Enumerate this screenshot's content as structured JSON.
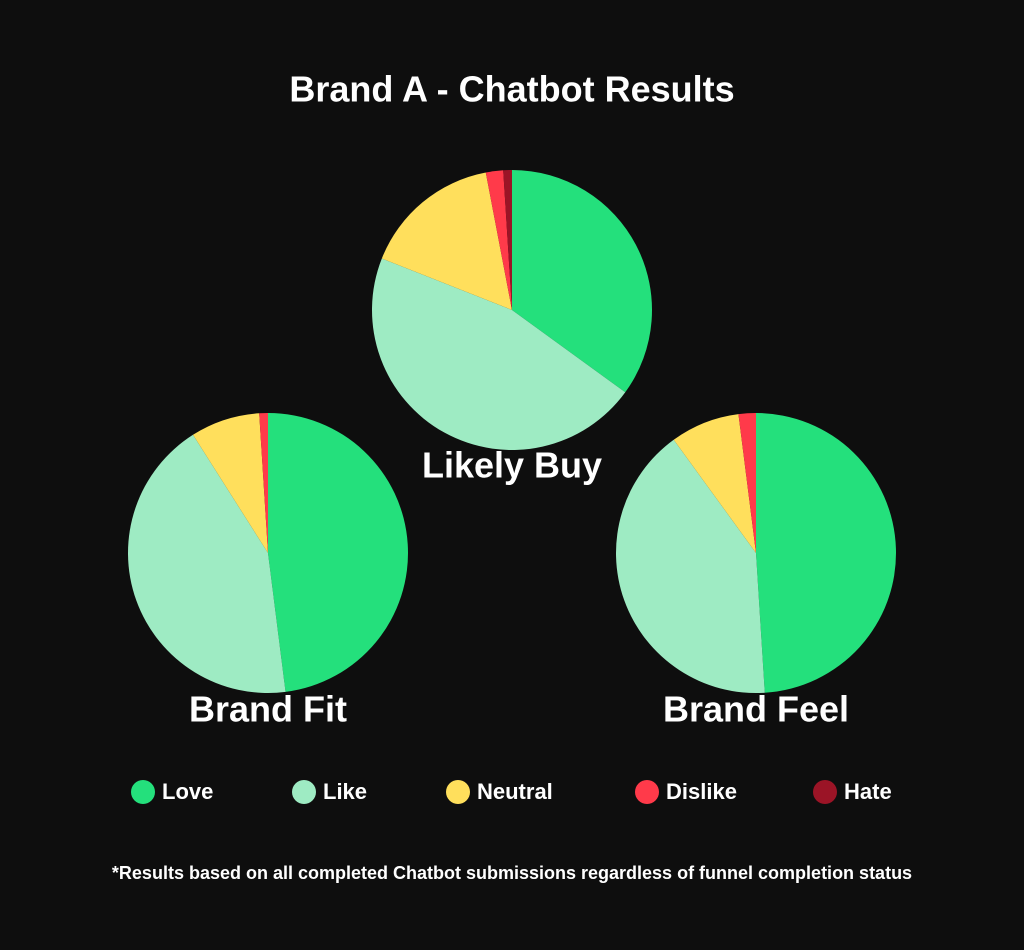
{
  "title": "Brand A - Chatbot Results",
  "footnote": "*Results based on all completed Chatbot submissions regardless of funnel completion status",
  "legend": {
    "labels": [
      "Love",
      "Like",
      "Neutral",
      "Dislike",
      "Hate"
    ],
    "colors": [
      "#24e07c",
      "#9eebc3",
      "#ffdf5c",
      "#ff3a4a",
      "#9b1426"
    ]
  },
  "chart_data": [
    {
      "type": "pie",
      "title": "Likely Buy",
      "values": [
        35,
        46,
        16,
        2,
        1
      ]
    },
    {
      "type": "pie",
      "title": "Brand Fit",
      "values": [
        48,
        43,
        8,
        1,
        0
      ]
    },
    {
      "type": "pie",
      "title": "Brand Feel",
      "values": [
        49,
        41,
        8,
        2,
        0
      ]
    }
  ]
}
